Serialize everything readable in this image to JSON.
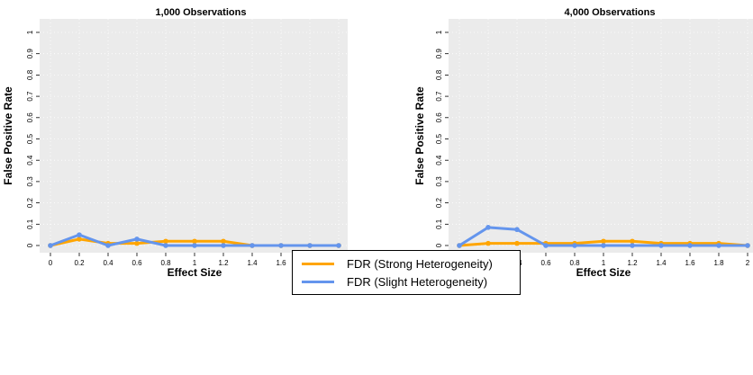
{
  "chart_data": [
    {
      "type": "line",
      "title": "1,000 Observations",
      "xlabel": "Effect Size",
      "ylabel": "False Positive Rate",
      "xlim": [
        0,
        2
      ],
      "ylim": [
        0,
        1
      ],
      "grid": true,
      "x": [
        0,
        0.2,
        0.4,
        0.6,
        0.8,
        1,
        1.2,
        1.4,
        1.6,
        1.8,
        2
      ],
      "x_ticks": [
        "0",
        "0.2",
        "0.4",
        "0.6",
        "0.8",
        "1",
        "1.2",
        "1.4",
        "1.6",
        "1.8",
        "2"
      ],
      "y_ticks": [
        "0",
        "0.1",
        "0.2",
        "0.3",
        "0.4",
        "0.5",
        "0.6",
        "0.7",
        "0.8",
        "0.9",
        "1"
      ],
      "series": [
        {
          "name": "FDR (Strong Heterogeneity)",
          "color": "#FFA500",
          "values": [
            0,
            0.03,
            0.01,
            0.01,
            0.02,
            0.02,
            0.02,
            0,
            0,
            0,
            0
          ]
        },
        {
          "name": "FDR (Slight Heterogeneity)",
          "color": "#6495ED",
          "values": [
            0,
            0.05,
            0,
            0.03,
            0,
            0,
            0,
            0,
            0,
            0,
            0
          ]
        }
      ]
    },
    {
      "type": "line",
      "title": "4,000 Observations",
      "xlabel": "Effect Size",
      "ylabel": "False Positive Rate",
      "xlim": [
        0,
        2
      ],
      "ylim": [
        0,
        1
      ],
      "grid": true,
      "x": [
        0,
        0.2,
        0.4,
        0.6,
        0.8,
        1,
        1.2,
        1.4,
        1.6,
        1.8,
        2
      ],
      "x_ticks": [
        "0",
        "0.2",
        "0.4",
        "0.6",
        "0.8",
        "1",
        "1.2",
        "1.4",
        "1.6",
        "1.8",
        "2"
      ],
      "y_ticks": [
        "0",
        "0.1",
        "0.2",
        "0.3",
        "0.4",
        "0.5",
        "0.6",
        "0.7",
        "0.8",
        "0.9",
        "1"
      ],
      "series": [
        {
          "name": "FDR (Strong Heterogeneity)",
          "color": "#FFA500",
          "values": [
            0,
            0.01,
            0.01,
            0.01,
            0.01,
            0.02,
            0.02,
            0.01,
            0.01,
            0.01,
            0
          ]
        },
        {
          "name": "FDR (Slight Heterogeneity)",
          "color": "#6495ED",
          "values": [
            0,
            0.085,
            0.075,
            0,
            0,
            0,
            0,
            0,
            0,
            0,
            0
          ]
        }
      ]
    }
  ],
  "legend": {
    "placement": "bottom-center",
    "items": [
      {
        "label": "FDR (Strong Heterogeneity)",
        "color": "#FFA500"
      },
      {
        "label": "FDR (Slight Heterogeneity)",
        "color": "#6495ED"
      }
    ]
  }
}
